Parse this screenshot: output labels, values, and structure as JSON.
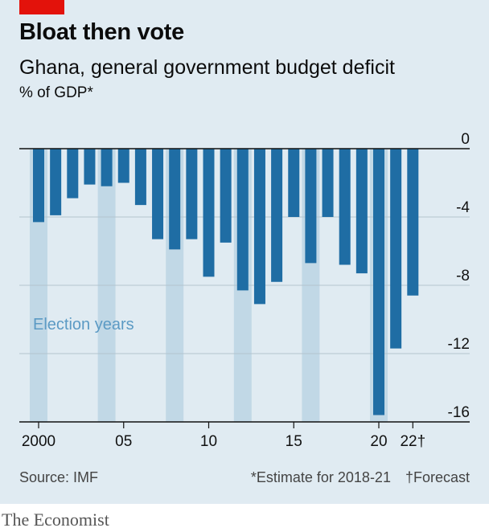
{
  "header": {
    "title": "Bloat then vote",
    "subtitle": "Ghana, general government budget deficit",
    "unit": "% of GDP*"
  },
  "footer": {
    "source": "Source: IMF",
    "note_estimate": "*Estimate for 2018-21",
    "note_forecast": "†Forecast",
    "credit": "The Economist"
  },
  "colors": {
    "background": "#e0ebf2",
    "bar": "#1f6da4",
    "election_band": "#c1d8e6",
    "election_label": "#5b9ac4",
    "brand_red": "#e3120b"
  },
  "chart_data": {
    "type": "bar",
    "title": "Bloat then vote",
    "subtitle": "Ghana, general government budget deficit",
    "ylabel": "% of GDP*",
    "ylim": [
      -16,
      0
    ],
    "yticks": [
      0,
      -4,
      -8,
      -12,
      -16
    ],
    "ytick_labels": [
      "0",
      "-4",
      "-8",
      "-12",
      "-16"
    ],
    "xtick_labels": [
      {
        "year": 2000,
        "label": "2000"
      },
      {
        "year": 2005,
        "label": "05"
      },
      {
        "year": 2010,
        "label": "10"
      },
      {
        "year": 2015,
        "label": "15"
      },
      {
        "year": 2020,
        "label": "20"
      },
      {
        "year": 2022,
        "label": "22†"
      }
    ],
    "categories": [
      2000,
      2001,
      2002,
      2003,
      2004,
      2005,
      2006,
      2007,
      2008,
      2009,
      2010,
      2011,
      2012,
      2013,
      2014,
      2015,
      2016,
      2017,
      2018,
      2019,
      2020,
      2021,
      2022
    ],
    "values": [
      -4.3,
      -3.9,
      -2.9,
      -2.1,
      -2.2,
      -2.0,
      -3.3,
      -5.3,
      -5.9,
      -5.3,
      -7.5,
      -5.5,
      -8.3,
      -9.1,
      -7.8,
      -4.0,
      -6.7,
      -4.0,
      -6.8,
      -7.3,
      -15.6,
      -11.7,
      -8.6
    ],
    "election_years": [
      2000,
      2004,
      2008,
      2012,
      2016,
      2020
    ],
    "annotations": [
      "Election years"
    ],
    "grid": true
  }
}
